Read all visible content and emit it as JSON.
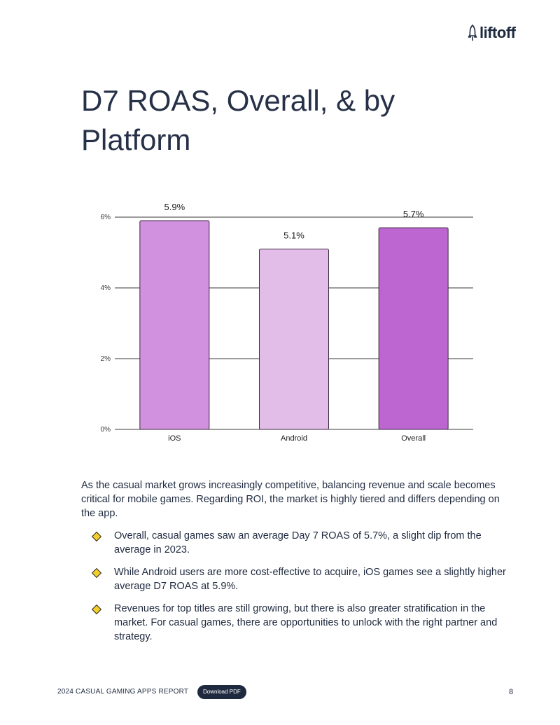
{
  "brand": {
    "logo_text": "liftoff"
  },
  "page": {
    "title": "D7 ROAS, Overall, & by Platform"
  },
  "chart_data": {
    "type": "bar",
    "title": "",
    "xlabel": "",
    "ylabel": "",
    "categories": [
      "iOS",
      "Android",
      "Overall"
    ],
    "values": [
      5.9,
      5.1,
      5.7
    ],
    "value_labels": [
      "5.9%",
      "5.1%",
      "5.7%"
    ],
    "colors": [
      "#d191de",
      "#e2bde8",
      "#bd66d2"
    ],
    "ylim": [
      0,
      6
    ],
    "yticks": [
      0,
      2,
      4,
      6
    ],
    "ytick_labels": [
      "0%",
      "2%",
      "4%",
      "6%"
    ],
    "grid": true
  },
  "body": {
    "paragraph": "As the casual market grows increasingly competitive, balancing revenue and scale becomes critical for mobile games. Regarding ROI, the market is highly tiered and differs depending on the app.",
    "bullets": [
      "Overall, casual games saw an average Day 7 ROAS of 5.7%, a slight dip from the average in 2023.",
      "While Android users are more cost-effective to acquire, iOS games see a slightly higher average D7 ROAS at 5.9%.",
      "Revenues for top titles are still growing, but there is also greater stratification in the market. For casual games, there are opportunities to unlock with the right partner and strategy."
    ]
  },
  "footer": {
    "report_title": "2024 CASUAL GAMING APPS REPORT",
    "download_label": "Download PDF",
    "page_number": "8"
  }
}
